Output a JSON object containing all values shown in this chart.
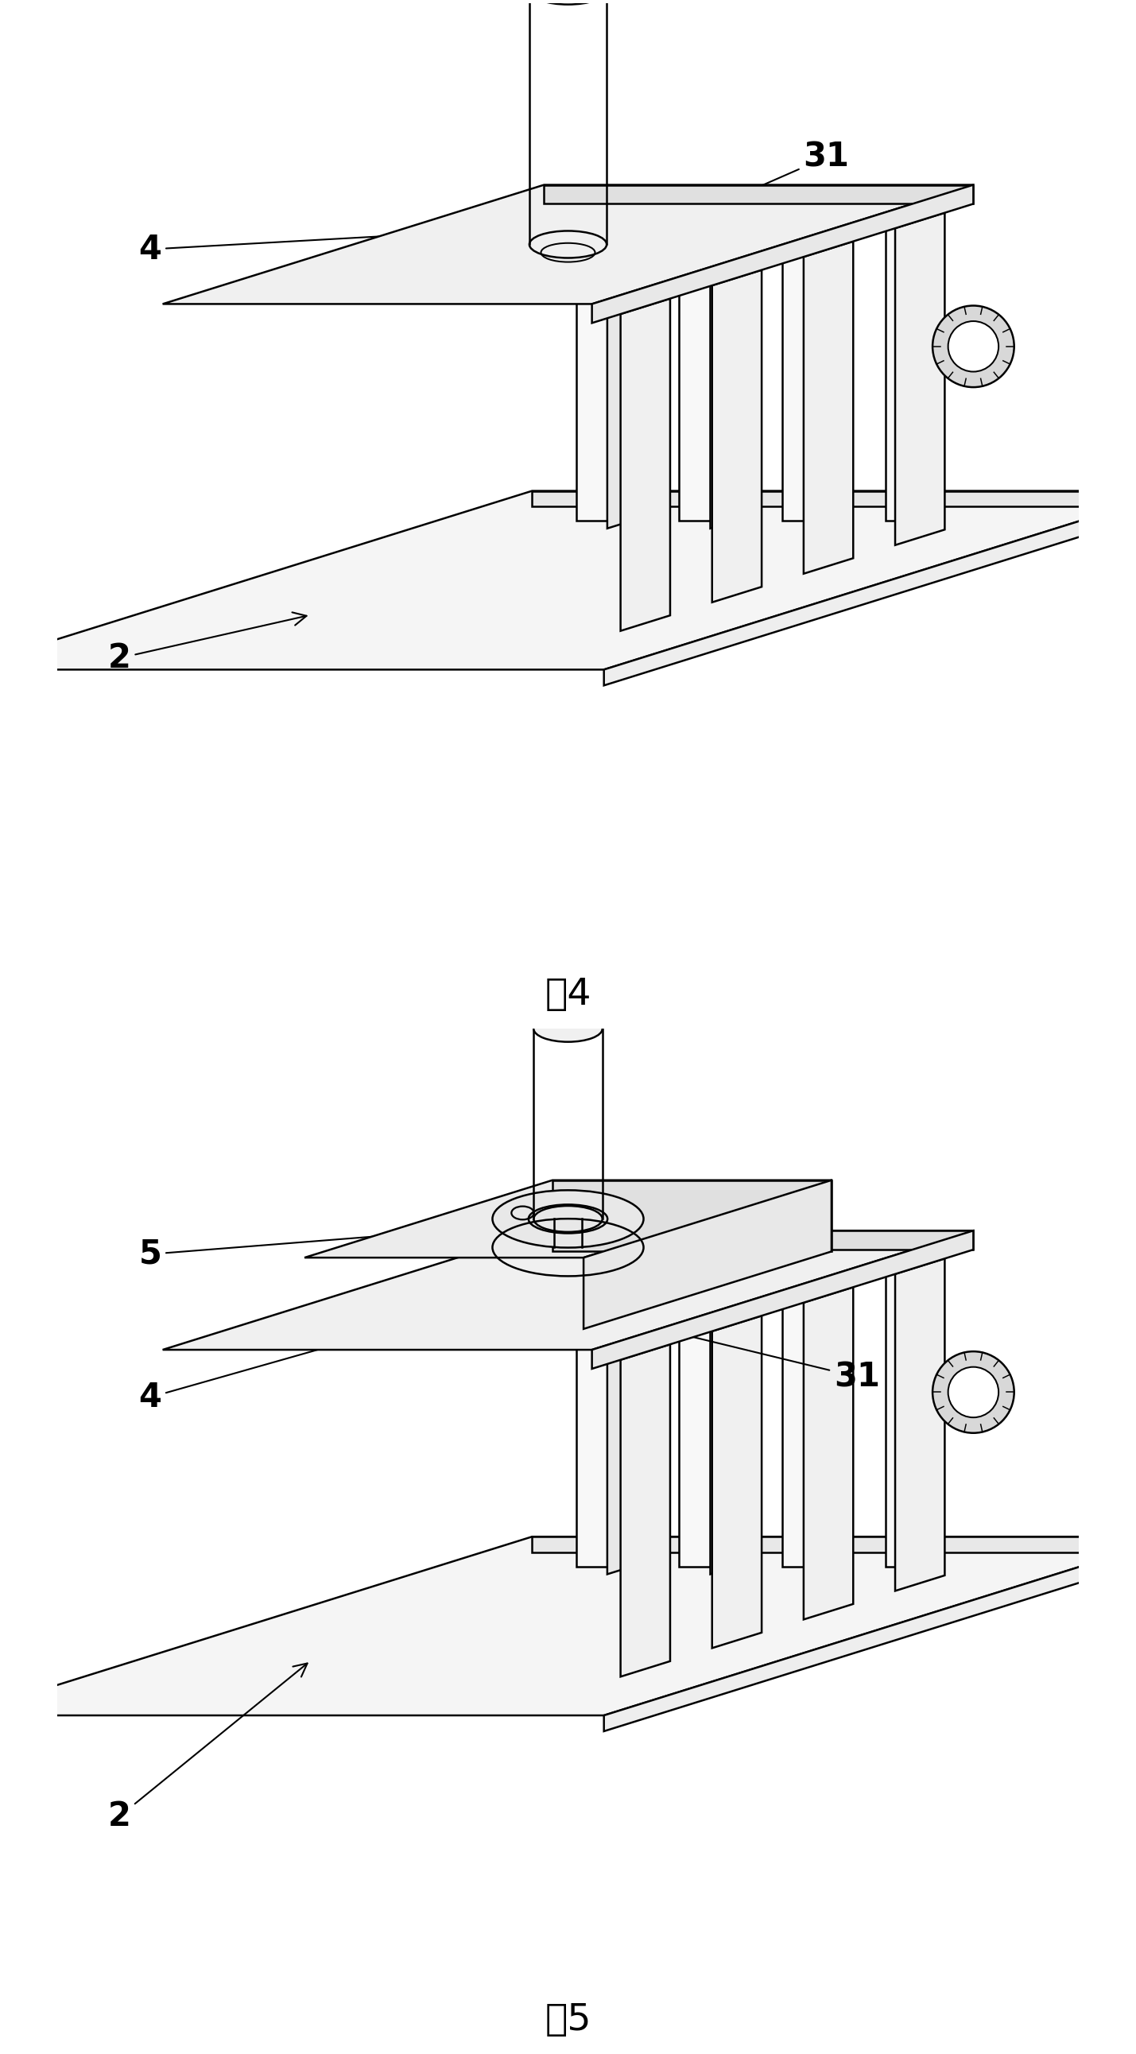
{
  "bg_color": "#ffffff",
  "line_color": "#000000",
  "line_width": 1.8,
  "fig4_caption": "图4",
  "fig5_caption": "图5"
}
